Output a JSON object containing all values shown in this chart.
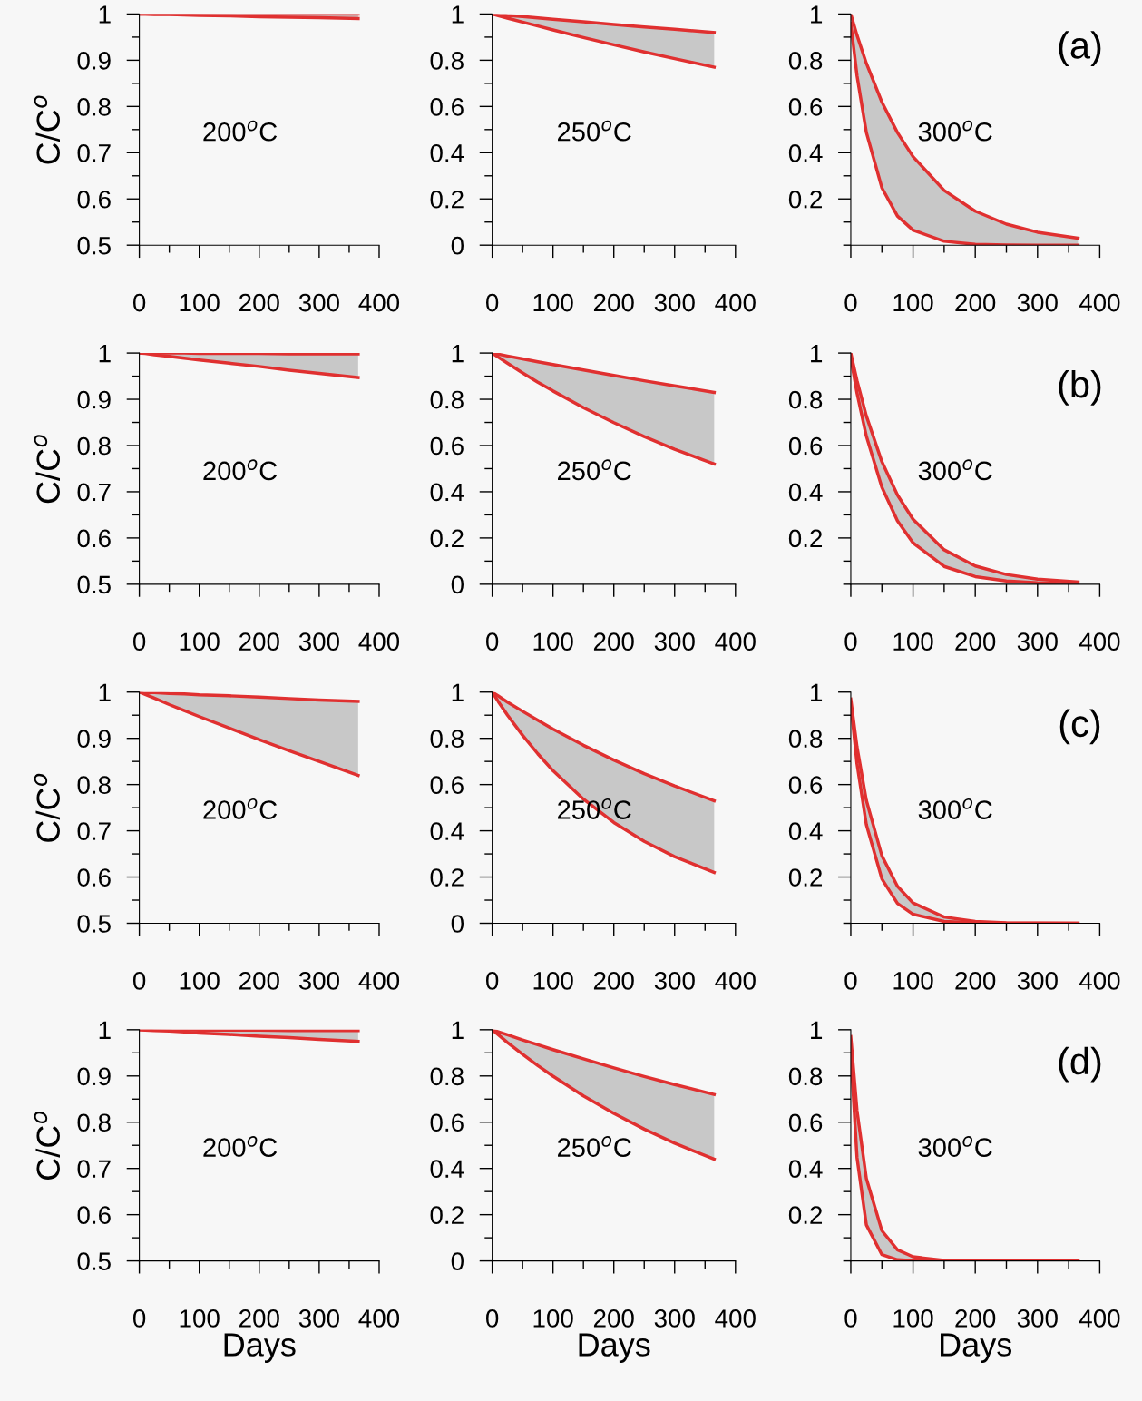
{
  "chart_data": [
    {
      "type": "line",
      "ylabel": "C/C$^{o}$",
      "annotations": [
        "200$^{o}$C"
      ],
      "x": [
        0,
        10,
        25,
        50,
        75,
        100,
        150,
        200,
        250,
        300,
        365
      ],
      "xlim": [
        0,
        400
      ],
      "xticks": [
        0,
        {
          "value": 50,
          "label": null
        },
        100,
        {
          "value": 150,
          "label": null
        },
        200,
        {
          "value": 250,
          "label": null
        },
        300,
        {
          "value": 350,
          "label": null
        },
        400
      ],
      "ylim": [
        0.5,
        1
      ],
      "yticks": [
        0.5,
        {
          "value": 0.55,
          "label": null
        },
        0.6,
        {
          "value": 0.65,
          "label": null
        },
        0.7,
        {
          "value": 0.75,
          "label": null
        },
        0.8,
        {
          "value": 0.85,
          "label": null
        },
        0.9,
        {
          "value": 0.95,
          "label": null
        },
        1
      ],
      "series": [
        {
          "color": "#e03030",
          "values": [
            1,
            1,
            1,
            1,
            1,
            1,
            1,
            1,
            1,
            1,
            1
          ],
          "upper": [
            1,
            1,
            1,
            1,
            1,
            1,
            1,
            1,
            1,
            1,
            1
          ],
          "lower": [
            1,
            1,
            0.999,
            0.999,
            0.998,
            0.997,
            0.996,
            0.994,
            0.993,
            0.992,
            0.99
          ]
        },
        {
          "color": "#e03030",
          "values": [
            1,
            1,
            0.999,
            0.999,
            0.998,
            0.997,
            0.996,
            0.994,
            0.993,
            0.992,
            0.99
          ]
        }
      ]
    },
    {
      "type": "line",
      "annotations": [
        "250$^{o}$C"
      ],
      "x": [
        0,
        10,
        25,
        50,
        75,
        100,
        150,
        200,
        250,
        300,
        365
      ],
      "xlim": [
        0,
        400
      ],
      "xticks": [
        0,
        {
          "value": 50,
          "label": null
        },
        100,
        {
          "value": 150,
          "label": null
        },
        200,
        {
          "value": 250,
          "label": null
        },
        300,
        {
          "value": 350,
          "label": null
        },
        400
      ],
      "ylim": [
        0,
        1
      ],
      "yticks": [
        0,
        {
          "value": 0.1,
          "label": null
        },
        0.2,
        {
          "value": 0.3,
          "label": null
        },
        0.4,
        {
          "value": 0.5,
          "label": null
        },
        0.6,
        {
          "value": 0.7,
          "label": null
        },
        0.8,
        {
          "value": 0.9,
          "label": null
        },
        1
      ],
      "series": [
        {
          "color": "#e03030",
          "values": [
            1,
            0.998,
            0.994,
            0.989,
            0.983,
            0.977,
            0.966,
            0.955,
            0.944,
            0.934,
            0.92
          ],
          "upper": [
            1,
            0.998,
            0.994,
            0.989,
            0.983,
            0.977,
            0.966,
            0.955,
            0.944,
            0.934,
            0.92
          ],
          "lower": [
            1,
            0.993,
            0.982,
            0.965,
            0.948,
            0.931,
            0.898,
            0.867,
            0.836,
            0.807,
            0.77
          ]
        },
        {
          "color": "#e03030",
          "values": [
            1,
            0.993,
            0.982,
            0.965,
            0.948,
            0.931,
            0.898,
            0.867,
            0.836,
            0.807,
            0.77
          ]
        }
      ]
    },
    {
      "type": "line",
      "annotations": [
        "300$^{o}$C",
        "(a)"
      ],
      "x": [
        0,
        10,
        25,
        50,
        75,
        100,
        150,
        200,
        250,
        300,
        365
      ],
      "xlim": [
        0,
        400
      ],
      "xticks": [
        0,
        {
          "value": 50,
          "label": null
        },
        100,
        {
          "value": 150,
          "label": null
        },
        200,
        {
          "value": 250,
          "label": null
        },
        300,
        {
          "value": 350,
          "label": null
        },
        400
      ],
      "ylim": [
        0,
        1
      ],
      "yticks": [
        {
          "value": 0,
          "label": null
        },
        {
          "value": 0.1,
          "label": null
        },
        0.2,
        {
          "value": 0.3,
          "label": null
        },
        0.4,
        {
          "value": 0.5,
          "label": null
        },
        0.6,
        {
          "value": 0.7,
          "label": null
        },
        0.8,
        {
          "value": 0.9,
          "label": null
        },
        1
      ],
      "series": [
        {
          "color": "#e03030",
          "values": [
            1,
            0.908,
            0.787,
            0.619,
            0.487,
            0.383,
            0.237,
            0.147,
            0.091,
            0.056,
            0.03
          ],
          "upper": [
            1,
            0.908,
            0.787,
            0.619,
            0.487,
            0.383,
            0.237,
            0.147,
            0.091,
            0.056,
            0.03
          ],
          "lower": [
            0.96,
            0.733,
            0.488,
            0.248,
            0.126,
            0.065,
            0.017,
            0.004,
            0.001,
            0,
            0
          ]
        },
        {
          "color": "#e03030",
          "values": [
            0.96,
            0.733,
            0.488,
            0.248,
            0.126,
            0.065,
            0.017,
            0.004,
            0.001,
            0,
            0
          ]
        }
      ]
    },
    {
      "type": "line",
      "ylabel": "C/C$^{o}$",
      "annotations": [
        "200$^{o}$C"
      ],
      "x": [
        0,
        10,
        25,
        50,
        75,
        100,
        150,
        200,
        250,
        300,
        365
      ],
      "xlim": [
        0,
        400
      ],
      "xticks": [
        0,
        {
          "value": 50,
          "label": null
        },
        100,
        {
          "value": 150,
          "label": null
        },
        200,
        {
          "value": 250,
          "label": null
        },
        300,
        {
          "value": 350,
          "label": null
        },
        400
      ],
      "ylim": [
        0.5,
        1
      ],
      "yticks": [
        0.5,
        {
          "value": 0.55,
          "label": null
        },
        0.6,
        {
          "value": 0.65,
          "label": null
        },
        0.7,
        {
          "value": 0.75,
          "label": null
        },
        0.8,
        {
          "value": 0.85,
          "label": null
        },
        0.9,
        {
          "value": 0.95,
          "label": null
        },
        1
      ],
      "series": [
        {
          "color": "#e03030",
          "values": [
            1,
            1,
            1,
            1,
            1,
            0.999,
            0.999,
            0.999,
            0.998,
            0.998,
            0.998
          ],
          "upper": [
            1,
            1,
            1,
            1,
            1,
            0.999,
            0.999,
            0.999,
            0.998,
            0.998,
            0.998
          ],
          "lower": [
            1,
            0.999,
            0.996,
            0.993,
            0.989,
            0.985,
            0.978,
            0.971,
            0.963,
            0.956,
            0.947
          ]
        },
        {
          "color": "#e03030",
          "values": [
            1,
            0.999,
            0.996,
            0.993,
            0.989,
            0.985,
            0.978,
            0.971,
            0.963,
            0.956,
            0.947
          ]
        }
      ]
    },
    {
      "type": "line",
      "annotations": [
        "250$^{o}$C"
      ],
      "x": [
        0,
        10,
        25,
        50,
        75,
        100,
        150,
        200,
        250,
        300,
        365
      ],
      "xlim": [
        0,
        400
      ],
      "xticks": [
        0,
        {
          "value": 50,
          "label": null
        },
        100,
        {
          "value": 150,
          "label": null
        },
        200,
        {
          "value": 250,
          "label": null
        },
        300,
        {
          "value": 350,
          "label": null
        },
        400
      ],
      "ylim": [
        0,
        1
      ],
      "yticks": [
        0,
        {
          "value": 0.1,
          "label": null
        },
        0.2,
        {
          "value": 0.3,
          "label": null
        },
        0.4,
        {
          "value": 0.5,
          "label": null
        },
        0.6,
        {
          "value": 0.7,
          "label": null
        },
        0.8,
        {
          "value": 0.9,
          "label": null
        },
        1
      ],
      "series": [
        {
          "color": "#e03030",
          "values": [
            1,
            0.995,
            0.987,
            0.975,
            0.962,
            0.95,
            0.927,
            0.903,
            0.88,
            0.858,
            0.83
          ],
          "upper": [
            1,
            0.995,
            0.987,
            0.975,
            0.962,
            0.95,
            0.927,
            0.903,
            0.88,
            0.858,
            0.83
          ],
          "lower": [
            1,
            0.982,
            0.956,
            0.914,
            0.874,
            0.836,
            0.764,
            0.699,
            0.639,
            0.584,
            0.52
          ]
        },
        {
          "color": "#e03030",
          "values": [
            1,
            0.982,
            0.956,
            0.914,
            0.874,
            0.836,
            0.764,
            0.699,
            0.639,
            0.584,
            0.52
          ]
        }
      ]
    },
    {
      "type": "line",
      "annotations": [
        "300$^{o}$C",
        "(b)"
      ],
      "x": [
        0,
        10,
        25,
        50,
        75,
        100,
        150,
        200,
        250,
        300,
        365
      ],
      "xlim": [
        0,
        400
      ],
      "xticks": [
        0,
        {
          "value": 50,
          "label": null
        },
        100,
        {
          "value": 150,
          "label": null
        },
        200,
        {
          "value": 250,
          "label": null
        },
        300,
        {
          "value": 350,
          "label": null
        },
        400
      ],
      "ylim": [
        0,
        1
      ],
      "yticks": [
        {
          "value": 0,
          "label": null
        },
        {
          "value": 0.1,
          "label": null
        },
        0.2,
        {
          "value": 0.3,
          "label": null
        },
        0.4,
        {
          "value": 0.5,
          "label": null
        },
        0.6,
        {
          "value": 0.7,
          "label": null
        },
        0.8,
        {
          "value": 0.9,
          "label": null
        },
        1
      ],
      "series": [
        {
          "color": "#e03030",
          "values": [
            1,
            0.881,
            0.728,
            0.53,
            0.386,
            0.281,
            0.149,
            0.079,
            0.042,
            0.022,
            0.01
          ],
          "upper": [
            1,
            0.881,
            0.728,
            0.53,
            0.386,
            0.281,
            0.149,
            0.079,
            0.042,
            0.022,
            0.01
          ],
          "lower": [
            0.98,
            0.827,
            0.641,
            0.419,
            0.274,
            0.179,
            0.077,
            0.033,
            0.014,
            0.006,
            0.002
          ]
        },
        {
          "color": "#e03030",
          "values": [
            0.98,
            0.827,
            0.641,
            0.419,
            0.274,
            0.179,
            0.077,
            0.033,
            0.014,
            0.006,
            0.002
          ]
        }
      ]
    },
    {
      "type": "line",
      "ylabel": "C/C$^{o}$",
      "annotations": [
        "200$^{o}$C"
      ],
      "x": [
        0,
        10,
        25,
        50,
        75,
        100,
        150,
        200,
        250,
        300,
        365
      ],
      "xlim": [
        0,
        400
      ],
      "xticks": [
        0,
        {
          "value": 50,
          "label": null
        },
        100,
        {
          "value": 150,
          "label": null
        },
        200,
        {
          "value": 250,
          "label": null
        },
        300,
        {
          "value": 350,
          "label": null
        },
        400
      ],
      "ylim": [
        0.5,
        1
      ],
      "yticks": [
        0.5,
        {
          "value": 0.55,
          "label": null
        },
        0.6,
        {
          "value": 0.65,
          "label": null
        },
        0.7,
        {
          "value": 0.75,
          "label": null
        },
        0.8,
        {
          "value": 0.85,
          "label": null
        },
        0.9,
        {
          "value": 0.95,
          "label": null
        },
        1
      ],
      "series": [
        {
          "color": "#e03030",
          "values": [
            1,
            0.999,
            0.999,
            0.997,
            0.996,
            0.994,
            0.992,
            0.989,
            0.986,
            0.983,
            0.98
          ],
          "upper": [
            1,
            0.999,
            0.999,
            0.997,
            0.996,
            0.994,
            0.992,
            0.989,
            0.986,
            0.983,
            0.98
          ],
          "lower": [
            1,
            0.995,
            0.987,
            0.973,
            0.96,
            0.947,
            0.922,
            0.897,
            0.873,
            0.85,
            0.82
          ]
        },
        {
          "color": "#e03030",
          "values": [
            1,
            0.995,
            0.987,
            0.973,
            0.96,
            0.947,
            0.922,
            0.897,
            0.873,
            0.85,
            0.82
          ]
        }
      ]
    },
    {
      "type": "line",
      "annotations": [
        "250$^{o}$C"
      ],
      "x": [
        0,
        10,
        25,
        50,
        75,
        100,
        150,
        200,
        250,
        300,
        365
      ],
      "xlim": [
        0,
        400
      ],
      "xticks": [
        0,
        {
          "value": 50,
          "label": null
        },
        100,
        {
          "value": 150,
          "label": null
        },
        200,
        {
          "value": 250,
          "label": null
        },
        300,
        {
          "value": 350,
          "label": null
        },
        400
      ],
      "ylim": [
        0,
        1
      ],
      "yticks": [
        0,
        {
          "value": 0.1,
          "label": null
        },
        0.2,
        {
          "value": 0.3,
          "label": null
        },
        0.4,
        {
          "value": 0.5,
          "label": null
        },
        0.6,
        {
          "value": 0.7,
          "label": null
        },
        0.8,
        {
          "value": 0.9,
          "label": null
        },
        1
      ],
      "series": [
        {
          "color": "#e03030",
          "values": [
            1,
            0.983,
            0.957,
            0.917,
            0.878,
            0.84,
            0.77,
            0.706,
            0.647,
            0.594,
            0.53
          ],
          "upper": [
            1,
            0.983,
            0.957,
            0.917,
            0.878,
            0.84,
            0.77,
            0.706,
            0.647,
            0.594,
            0.53
          ],
          "lower": [
            1,
            0.959,
            0.901,
            0.813,
            0.733,
            0.66,
            0.537,
            0.436,
            0.354,
            0.288,
            0.22
          ]
        },
        {
          "color": "#e03030",
          "values": [
            1,
            0.959,
            0.901,
            0.813,
            0.733,
            0.66,
            0.537,
            0.436,
            0.354,
            0.288,
            0.22
          ]
        }
      ]
    },
    {
      "type": "line",
      "annotations": [
        "300$^{o}$C",
        "(c)"
      ],
      "x": [
        0,
        10,
        25,
        50,
        75,
        100,
        150,
        200,
        250,
        300,
        365
      ],
      "xlim": [
        0,
        400
      ],
      "xticks": [
        0,
        {
          "value": 50,
          "label": null
        },
        100,
        {
          "value": 150,
          "label": null
        },
        200,
        {
          "value": 250,
          "label": null
        },
        300,
        {
          "value": 350,
          "label": null
        },
        400
      ],
      "ylim": [
        0,
        1
      ],
      "yticks": [
        {
          "value": 0,
          "label": null
        },
        {
          "value": 0.1,
          "label": null
        },
        0.2,
        {
          "value": 0.3,
          "label": null
        },
        0.4,
        {
          "value": 0.5,
          "label": null
        },
        0.6,
        {
          "value": 0.7,
          "label": null
        },
        0.8,
        {
          "value": 0.9,
          "label": null
        },
        1
      ],
      "series": [
        {
          "color": "#e03030",
          "values": [
            0.97,
            0.763,
            0.532,
            0.292,
            0.16,
            0.088,
            0.027,
            0.008,
            0.002,
            0.001,
            0
          ],
          "upper": [
            0.97,
            0.763,
            0.532,
            0.292,
            0.16,
            0.088,
            0.027,
            0.008,
            0.002,
            0.001,
            0
          ],
          "lower": [
            0.95,
            0.69,
            0.427,
            0.192,
            0.086,
            0.039,
            0.008,
            0.002,
            0,
            0,
            0
          ]
        },
        {
          "color": "#e03030",
          "values": [
            0.95,
            0.69,
            0.427,
            0.192,
            0.086,
            0.039,
            0.008,
            0.002,
            0,
            0,
            0
          ]
        }
      ]
    },
    {
      "type": "line",
      "ylabel": "C/C$^{o}$",
      "xlabel": "Days",
      "annotations": [
        "200$^{o}$C"
      ],
      "x": [
        0,
        10,
        25,
        50,
        75,
        100,
        150,
        200,
        250,
        300,
        365
      ],
      "xlim": [
        0,
        400
      ],
      "xticks": [
        0,
        {
          "value": 50,
          "label": null
        },
        100,
        {
          "value": 150,
          "label": null
        },
        200,
        {
          "value": 250,
          "label": null
        },
        300,
        {
          "value": 350,
          "label": null
        },
        400
      ],
      "ylim": [
        0.5,
        1
      ],
      "yticks": [
        0.5,
        {
          "value": 0.55,
          "label": null
        },
        0.6,
        {
          "value": 0.65,
          "label": null
        },
        0.7,
        {
          "value": 0.75,
          "label": null
        },
        0.8,
        {
          "value": 0.85,
          "label": null
        },
        0.9,
        {
          "value": 0.95,
          "label": null
        },
        1
      ],
      "series": [
        {
          "color": "#e03030",
          "values": [
            1,
            1,
            1,
            1,
            1,
            0.999,
            0.999,
            0.999,
            0.998,
            0.998,
            0.998
          ],
          "upper": [
            1,
            1,
            1,
            1,
            1,
            0.999,
            0.999,
            0.999,
            0.998,
            0.998,
            0.998
          ],
          "lower": [
            1,
            0.999,
            0.998,
            0.997,
            0.995,
            0.993,
            0.99,
            0.986,
            0.983,
            0.979,
            0.975
          ]
        },
        {
          "color": "#e03030",
          "values": [
            1,
            0.999,
            0.998,
            0.997,
            0.995,
            0.993,
            0.99,
            0.986,
            0.983,
            0.979,
            0.975
          ]
        }
      ]
    },
    {
      "type": "line",
      "xlabel": "Days",
      "annotations": [
        "250$^{o}$C"
      ],
      "x": [
        0,
        10,
        25,
        50,
        75,
        100,
        150,
        200,
        250,
        300,
        365
      ],
      "xlim": [
        0,
        400
      ],
      "xticks": [
        0,
        {
          "value": 50,
          "label": null
        },
        100,
        {
          "value": 150,
          "label": null
        },
        200,
        {
          "value": 250,
          "label": null
        },
        300,
        {
          "value": 350,
          "label": null
        },
        400
      ],
      "ylim": [
        0,
        1
      ],
      "yticks": [
        0,
        {
          "value": 0.1,
          "label": null
        },
        0.2,
        {
          "value": 0.3,
          "label": null
        },
        0.4,
        {
          "value": 0.5,
          "label": null
        },
        0.6,
        {
          "value": 0.7,
          "label": null
        },
        0.8,
        {
          "value": 0.9,
          "label": null
        },
        1
      ],
      "series": [
        {
          "color": "#e03030",
          "values": [
            1,
            0.991,
            0.978,
            0.956,
            0.935,
            0.914,
            0.874,
            0.835,
            0.798,
            0.763,
            0.72
          ],
          "upper": [
            1,
            0.991,
            0.978,
            0.956,
            0.935,
            0.914,
            0.874,
            0.835,
            0.798,
            0.763,
            0.72
          ],
          "lower": [
            1,
            0.978,
            0.945,
            0.894,
            0.845,
            0.799,
            0.714,
            0.638,
            0.57,
            0.509,
            0.44
          ]
        },
        {
          "color": "#e03030",
          "values": [
            1,
            0.978,
            0.945,
            0.894,
            0.845,
            0.799,
            0.714,
            0.638,
            0.57,
            0.509,
            0.44
          ]
        }
      ]
    },
    {
      "type": "line",
      "xlabel": "Days",
      "annotations": [
        "300$^{o}$C",
        "(d)"
      ],
      "x": [
        0,
        10,
        25,
        50,
        75,
        100,
        150,
        200,
        250,
        300,
        365
      ],
      "xlim": [
        0,
        400
      ],
      "xticks": [
        0,
        {
          "value": 50,
          "label": null
        },
        100,
        {
          "value": 150,
          "label": null
        },
        200,
        {
          "value": 250,
          "label": null
        },
        300,
        {
          "value": 350,
          "label": null
        },
        400
      ],
      "ylim": [
        0,
        1
      ],
      "yticks": [
        {
          "value": 0,
          "label": null
        },
        {
          "value": 0.1,
          "label": null
        },
        0.2,
        {
          "value": 0.3,
          "label": null
        },
        0.4,
        {
          "value": 0.5,
          "label": null
        },
        0.6,
        {
          "value": 0.7,
          "label": null
        },
        0.8,
        {
          "value": 0.9,
          "label": null
        },
        1
      ],
      "series": [
        {
          "color": "#e03030",
          "values": [
            0.97,
            0.65,
            0.357,
            0.131,
            0.048,
            0.018,
            0.002,
            0,
            0,
            0,
            0
          ],
          "upper": [
            0.97,
            0.65,
            0.357,
            0.131,
            0.048,
            0.018,
            0.002,
            0,
            0,
            0,
            0
          ],
          "lower": [
            0.9,
            0.447,
            0.156,
            0.027,
            0.005,
            0.001,
            0,
            0,
            0,
            0,
            0
          ]
        },
        {
          "color": "#e03030",
          "values": [
            0.9,
            0.447,
            0.156,
            0.027,
            0.005,
            0.001,
            0,
            0,
            0,
            0,
            0
          ]
        }
      ]
    }
  ]
}
